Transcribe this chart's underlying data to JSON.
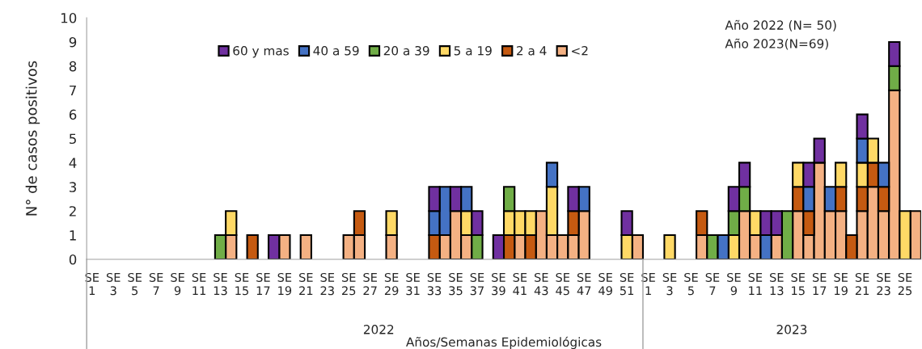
{
  "chart_data": {
    "type": "bar",
    "stacked": true,
    "xlabel": "Años/Semanas Epidemiológicas",
    "ylabel": "N° de casos positivos",
    "annotations": [
      "Año 2022 (N= 50)\nAño 2023(N=69)",
      "2022",
      "2023"
    ],
    "categories": [
      "SE\n1",
      null,
      "SE\n3",
      null,
      "SE\n5",
      null,
      "SE\n7",
      null,
      "SE\n9",
      null,
      "SE\n11",
      null,
      "SE\n13",
      null,
      "SE\n15",
      null,
      "SE\n17",
      null,
      "SE\n19",
      null,
      "SE\n21",
      null,
      "SE\n23",
      null,
      "SE\n25",
      null,
      "SE\n27",
      null,
      "SE\n29",
      null,
      "SE\n31",
      null,
      "SE\n33",
      null,
      "SE\n35",
      null,
      "SE\n37",
      null,
      "SE\n39",
      null,
      "SE\n41",
      null,
      "SE\n43",
      null,
      "SE\n45",
      null,
      "SE\n47",
      null,
      "SE\n49",
      null,
      "SE\n51",
      null,
      "SE\n1",
      null,
      "SE\n3",
      null,
      "SE\n5",
      null,
      "SE\n7",
      null,
      "SE\n9",
      null,
      "SE\n11",
      null,
      "SE\n13",
      null,
      "SE\n15",
      null,
      "SE\n17",
      null,
      "SE\n19",
      null,
      "SE\n21",
      null,
      "SE\n23",
      null,
      "SE\n25",
      null
    ],
    "series": [
      {
        "name": "<2",
        "color": "#f4b183",
        "values": [
          0,
          0,
          0,
          0,
          0,
          0,
          0,
          0,
          0,
          0,
          0,
          0,
          0,
          1,
          0,
          0,
          0,
          0,
          1,
          0,
          1,
          0,
          0,
          0,
          1,
          1,
          0,
          0,
          1,
          0,
          0,
          0,
          0,
          1,
          2,
          1,
          0,
          0,
          0,
          0,
          1,
          0,
          2,
          1,
          1,
          1,
          2,
          0,
          0,
          0,
          0,
          1,
          0,
          0,
          0,
          0,
          0,
          1,
          0,
          0,
          0,
          2,
          1,
          0,
          1,
          0,
          2,
          1,
          4,
          2,
          2,
          0,
          2,
          3,
          2,
          7,
          0,
          2
        ]
      },
      {
        "name": "2 a 4",
        "color": "#c55a11",
        "values": [
          0,
          0,
          0,
          0,
          0,
          0,
          0,
          0,
          0,
          0,
          0,
          0,
          0,
          0,
          0,
          1,
          0,
          0,
          0,
          0,
          0,
          0,
          0,
          0,
          0,
          1,
          0,
          0,
          0,
          0,
          0,
          0,
          1,
          0,
          0,
          0,
          0,
          0,
          0,
          1,
          0,
          1,
          0,
          0,
          0,
          1,
          0,
          0,
          0,
          0,
          0,
          0,
          0,
          0,
          0,
          0,
          0,
          1,
          0,
          0,
          0,
          0,
          0,
          0,
          0,
          0,
          1,
          1,
          0,
          0,
          1,
          1,
          1,
          1,
          1,
          0,
          0,
          0
        ]
      },
      {
        "name": "5 a 19",
        "color": "#ffd966",
        "values": [
          0,
          0,
          0,
          0,
          0,
          0,
          0,
          0,
          0,
          0,
          0,
          0,
          0,
          1,
          0,
          0,
          0,
          0,
          0,
          0,
          0,
          0,
          0,
          0,
          0,
          0,
          0,
          0,
          1,
          0,
          0,
          0,
          0,
          0,
          0,
          1,
          0,
          0,
          0,
          1,
          1,
          1,
          0,
          2,
          0,
          0,
          0,
          0,
          0,
          0,
          1,
          0,
          0,
          0,
          1,
          0,
          0,
          0,
          0,
          0,
          1,
          0,
          1,
          0,
          0,
          0,
          1,
          0,
          0,
          0,
          1,
          0,
          1,
          1,
          0,
          0,
          2,
          0
        ]
      },
      {
        "name": "20 a 39",
        "color": "#70ad47",
        "values": [
          0,
          0,
          0,
          0,
          0,
          0,
          0,
          0,
          0,
          0,
          0,
          0,
          1,
          0,
          0,
          0,
          0,
          0,
          0,
          0,
          0,
          0,
          0,
          0,
          0,
          0,
          0,
          0,
          0,
          0,
          0,
          0,
          0,
          0,
          0,
          0,
          1,
          0,
          0,
          1,
          0,
          0,
          0,
          0,
          0,
          0,
          0,
          0,
          0,
          0,
          0,
          0,
          0,
          0,
          0,
          0,
          0,
          0,
          1,
          0,
          1,
          1,
          0,
          0,
          0,
          2,
          0,
          0,
          0,
          0,
          0,
          0,
          0,
          0,
          0,
          1,
          0,
          0
        ]
      },
      {
        "name": "40 a 59",
        "color": "#4472c4",
        "values": [
          0,
          0,
          0,
          0,
          0,
          0,
          0,
          0,
          0,
          0,
          0,
          0,
          0,
          0,
          0,
          0,
          0,
          0,
          0,
          0,
          0,
          0,
          0,
          0,
          0,
          0,
          0,
          0,
          0,
          0,
          0,
          0,
          1,
          2,
          0,
          1,
          0,
          0,
          0,
          0,
          0,
          0,
          0,
          1,
          0,
          0,
          1,
          0,
          0,
          0,
          0,
          0,
          0,
          0,
          0,
          0,
          0,
          0,
          0,
          1,
          0,
          0,
          0,
          1,
          0,
          0,
          0,
          1,
          0,
          1,
          0,
          0,
          1,
          0,
          1,
          0,
          0,
          0
        ]
      },
      {
        "name": "60 y mas",
        "color": "#7030a0",
        "values": [
          0,
          0,
          0,
          0,
          0,
          0,
          0,
          0,
          0,
          0,
          0,
          0,
          0,
          0,
          0,
          0,
          0,
          1,
          0,
          0,
          0,
          0,
          0,
          0,
          0,
          0,
          0,
          0,
          0,
          0,
          0,
          0,
          1,
          0,
          1,
          0,
          1,
          0,
          1,
          0,
          0,
          0,
          0,
          0,
          0,
          1,
          0,
          0,
          0,
          0,
          1,
          0,
          0,
          0,
          0,
          0,
          0,
          0,
          0,
          0,
          1,
          1,
          0,
          1,
          1,
          0,
          0,
          1,
          1,
          0,
          0,
          0,
          1,
          0,
          0,
          1,
          0,
          0
        ]
      }
    ],
    "ylim": [
      0,
      10
    ],
    "yticks": [
      0,
      1,
      2,
      3,
      4,
      5,
      6,
      7,
      8,
      9,
      10
    ],
    "grid": false,
    "legend": "top"
  }
}
